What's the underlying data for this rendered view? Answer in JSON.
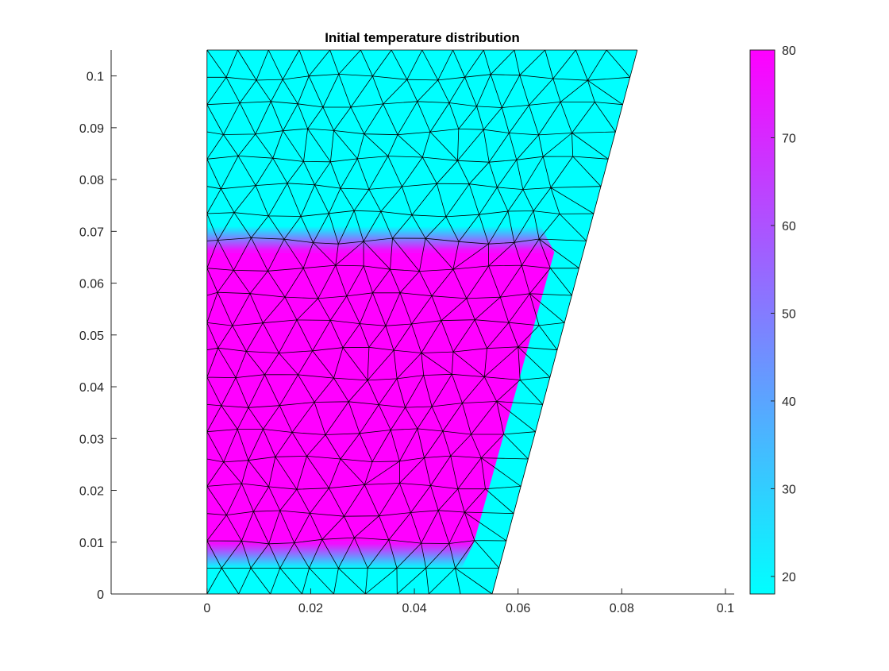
{
  "chart_data": {
    "type": "heatmap",
    "title": "Initial temperature distribution",
    "xlabel": "",
    "ylabel": "",
    "xlim": [
      -0.0185,
      0.1017
    ],
    "ylim": [
      0,
      0.105
    ],
    "xticks": [
      0,
      0.02,
      0.04,
      0.06,
      0.08,
      0.1
    ],
    "xtick_labels": [
      "0",
      "0.02",
      "0.04",
      "0.06",
      "0.08",
      "0.1"
    ],
    "yticks": [
      0,
      0.01,
      0.02,
      0.03,
      0.04,
      0.05,
      0.06,
      0.07,
      0.08,
      0.09,
      0.1
    ],
    "ytick_labels": [
      "0",
      "0.01",
      "0.02",
      "0.03",
      "0.04",
      "0.05",
      "0.06",
      "0.07",
      "0.08",
      "0.09",
      "0.1"
    ],
    "domain_vertices": [
      [
        0,
        0
      ],
      [
        0.055,
        0
      ],
      [
        0.083,
        0.105
      ],
      [
        0,
        0.105
      ]
    ],
    "hot_region_vertices": [
      [
        0,
        0.01
      ],
      [
        0.0515,
        0.01
      ],
      [
        0.067,
        0.066
      ],
      [
        0,
        0.066
      ]
    ],
    "hot_temperature": 80,
    "cold_temperature": 18,
    "colormap": "cool",
    "colormap_low": "#00ffff",
    "colormap_high": "#ff00ff",
    "mesh": "triangular",
    "colorbar": {
      "limits": [
        18,
        80
      ],
      "ticks": [
        20,
        30,
        40,
        50,
        60,
        70,
        80
      ],
      "tick_labels": [
        "20",
        "30",
        "40",
        "50",
        "60",
        "70",
        "80"
      ],
      "placement": "right"
    }
  }
}
